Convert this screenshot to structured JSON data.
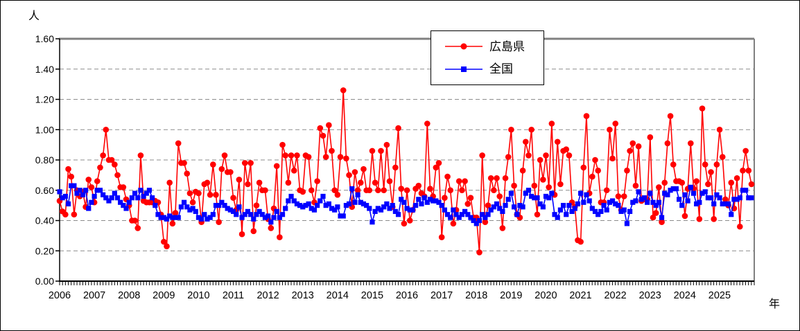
{
  "chart_data": {
    "type": "line",
    "title": "",
    "y_unit_label": "人",
    "x_unit_label": "年",
    "ylim": [
      0.0,
      1.6
    ],
    "y_tick_step": 0.2,
    "y_ticks": [
      "0.00",
      "0.20",
      "0.40",
      "0.60",
      "0.80",
      "1.00",
      "1.20",
      "1.40",
      "1.60"
    ],
    "x_tick_years": [
      "2006",
      "2007",
      "2008",
      "2009",
      "2010",
      "2011",
      "2012",
      "2013",
      "2014",
      "2015",
      "2016",
      "2017",
      "2018",
      "2019",
      "2020",
      "2021",
      "2022",
      "2023",
      "2024",
      "2025"
    ],
    "x_minor_ticks": "monthly",
    "x_start": "2006-01",
    "x_end": "2025-12",
    "grid": "horizontal-dashed",
    "grid_color": "#8c8c8c",
    "frame_color": "#808080",
    "legend_position": "top-center",
    "series": [
      {
        "name": "広島県",
        "color": "#ff0000",
        "marker": "circle",
        "values": [
          0.53,
          0.46,
          0.44,
          0.74,
          0.69,
          0.44,
          0.6,
          0.56,
          0.59,
          0.49,
          0.67,
          0.62,
          0.52,
          0.66,
          0.75,
          0.83,
          1.0,
          0.8,
          0.8,
          0.77,
          0.7,
          0.62,
          0.62,
          0.54,
          0.5,
          0.4,
          0.4,
          0.35,
          0.83,
          0.53,
          0.52,
          0.52,
          0.52,
          0.53,
          0.52,
          0.44,
          0.26,
          0.23,
          0.65,
          0.38,
          0.45,
          0.91,
          0.78,
          0.78,
          0.71,
          0.58,
          0.52,
          0.59,
          0.58,
          0.39,
          0.64,
          0.65,
          0.57,
          0.77,
          0.57,
          0.39,
          0.74,
          0.83,
          0.72,
          0.72,
          0.55,
          0.47,
          0.67,
          0.31,
          0.78,
          0.64,
          0.78,
          0.33,
          0.5,
          0.65,
          0.6,
          0.6,
          0.41,
          0.35,
          0.48,
          0.76,
          0.29,
          0.9,
          0.83,
          0.65,
          0.83,
          0.73,
          0.83,
          0.6,
          0.59,
          0.83,
          0.82,
          0.6,
          0.52,
          0.66,
          1.01,
          0.96,
          0.82,
          1.03,
          0.86,
          0.6,
          0.57,
          0.82,
          1.26,
          0.81,
          0.7,
          0.49,
          0.72,
          0.6,
          0.65,
          0.74,
          0.6,
          0.6,
          0.86,
          0.65,
          0.6,
          0.86,
          0.6,
          0.9,
          0.66,
          0.49,
          0.75,
          1.01,
          0.61,
          0.38,
          0.6,
          0.4,
          0.47,
          0.61,
          0.63,
          0.58,
          0.56,
          1.04,
          0.61,
          0.56,
          0.75,
          0.78,
          0.29,
          0.55,
          0.69,
          0.6,
          0.38,
          0.47,
          0.66,
          0.6,
          0.66,
          0.51,
          0.55,
          0.42,
          0.42,
          0.19,
          0.83,
          0.39,
          0.5,
          0.68,
          0.6,
          0.68,
          0.56,
          0.35,
          0.68,
          0.82,
          1.0,
          0.63,
          0.44,
          0.42,
          0.73,
          0.92,
          0.83,
          1.0,
          0.63,
          0.44,
          0.8,
          0.67,
          0.83,
          0.62,
          1.04,
          0.57,
          0.92,
          0.64,
          0.86,
          0.87,
          0.83,
          0.52,
          0.49,
          0.27,
          0.26,
          0.75,
          1.09,
          0.58,
          0.69,
          0.8,
          0.73,
          0.52,
          0.52,
          0.6,
          1.0,
          0.81,
          1.04,
          0.56,
          0.47,
          0.56,
          0.73,
          0.86,
          0.91,
          0.63,
          0.89,
          0.53,
          0.54,
          0.54,
          0.95,
          0.42,
          0.45,
          0.62,
          0.39,
          0.65,
          0.91,
          1.09,
          0.77,
          0.66,
          0.66,
          0.65,
          0.43,
          0.61,
          0.91,
          0.61,
          0.66,
          0.41,
          1.14,
          0.77,
          0.64,
          0.72,
          0.41,
          0.77,
          1.0,
          0.82,
          0.54,
          0.5,
          0.65,
          0.48,
          0.68,
          0.36,
          0.73,
          0.86,
          0.73,
          0.64
        ]
      },
      {
        "name": "全国",
        "color": "#0000ff",
        "marker": "square",
        "values": [
          0.59,
          0.55,
          0.56,
          0.51,
          0.63,
          0.63,
          0.58,
          0.6,
          0.57,
          0.6,
          0.48,
          0.52,
          0.56,
          0.6,
          0.6,
          0.57,
          0.55,
          0.53,
          0.55,
          0.58,
          0.55,
          0.52,
          0.5,
          0.48,
          0.52,
          0.55,
          0.58,
          0.55,
          0.6,
          0.56,
          0.58,
          0.6,
          0.55,
          0.5,
          0.44,
          0.42,
          0.42,
          0.41,
          0.43,
          0.42,
          0.42,
          0.42,
          0.49,
          0.52,
          0.49,
          0.47,
          0.48,
          0.46,
          0.42,
          0.41,
          0.44,
          0.41,
          0.42,
          0.44,
          0.5,
          0.5,
          0.52,
          0.5,
          0.48,
          0.47,
          0.46,
          0.44,
          0.49,
          0.42,
          0.44,
          0.46,
          0.44,
          0.41,
          0.44,
          0.46,
          0.44,
          0.42,
          0.43,
          0.39,
          0.42,
          0.46,
          0.42,
          0.44,
          0.48,
          0.53,
          0.56,
          0.53,
          0.51,
          0.5,
          0.49,
          0.5,
          0.51,
          0.48,
          0.47,
          0.5,
          0.53,
          0.56,
          0.5,
          0.51,
          0.48,
          0.47,
          0.49,
          0.43,
          0.43,
          0.5,
          0.51,
          0.61,
          0.52,
          0.57,
          0.52,
          0.51,
          0.5,
          0.48,
          0.39,
          0.46,
          0.48,
          0.47,
          0.49,
          0.51,
          0.48,
          0.5,
          0.46,
          0.44,
          0.54,
          0.52,
          0.48,
          0.47,
          0.47,
          0.5,
          0.54,
          0.51,
          0.55,
          0.52,
          0.54,
          0.53,
          0.53,
          0.52,
          0.5,
          0.47,
          0.44,
          0.42,
          0.47,
          0.44,
          0.42,
          0.44,
          0.46,
          0.44,
          0.42,
          0.4,
          0.38,
          0.4,
          0.44,
          0.42,
          0.44,
          0.47,
          0.49,
          0.51,
          0.48,
          0.46,
          0.5,
          0.54,
          0.58,
          0.49,
          0.44,
          0.5,
          0.49,
          0.58,
          0.6,
          0.56,
          0.55,
          0.55,
          0.51,
          0.49,
          0.56,
          0.55,
          0.58,
          0.44,
          0.42,
          0.47,
          0.5,
          0.44,
          0.5,
          0.46,
          0.48,
          0.51,
          0.58,
          0.52,
          0.57,
          0.53,
          0.48,
          0.46,
          0.44,
          0.46,
          0.5,
          0.47,
          0.52,
          0.53,
          0.51,
          0.5,
          0.46,
          0.47,
          0.38,
          0.46,
          0.52,
          0.53,
          0.59,
          0.54,
          0.55,
          0.52,
          0.58,
          0.52,
          0.5,
          0.52,
          0.42,
          0.58,
          0.57,
          0.6,
          0.61,
          0.61,
          0.54,
          0.5,
          0.57,
          0.53,
          0.62,
          0.58,
          0.51,
          0.52,
          0.58,
          0.59,
          0.55,
          0.55,
          0.51,
          0.57,
          0.55,
          0.51,
          0.51,
          0.51,
          0.44,
          0.54,
          0.54,
          0.55,
          0.6,
          0.6,
          0.55,
          0.55
        ]
      }
    ]
  }
}
